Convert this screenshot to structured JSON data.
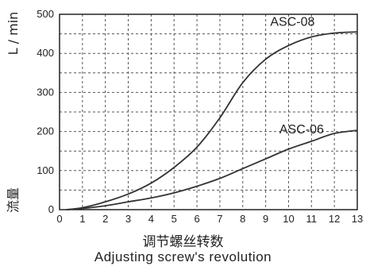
{
  "chart_data": {
    "type": "line",
    "xlabel": "调节螺丝转数",
    "xlabel_en": "Adjusting screw's revolution",
    "ylabel_unit": "L / min",
    "ylabel_cn": "流量",
    "xlim": [
      0,
      13
    ],
    "ylim": [
      0,
      500
    ],
    "x_ticks": [
      0,
      1,
      2,
      3,
      4,
      5,
      6,
      7,
      8,
      9,
      10,
      11,
      12,
      13
    ],
    "y_ticks": [
      0,
      100,
      200,
      300,
      400,
      500
    ],
    "grid": true,
    "series": [
      {
        "name": "ASC-08",
        "x": [
          0.3,
          1,
          2,
          3,
          4,
          5,
          6,
          7,
          8,
          9,
          10,
          11,
          12,
          13
        ],
        "values": [
          0,
          5,
          20,
          40,
          68,
          108,
          160,
          235,
          325,
          385,
          420,
          442,
          452,
          455
        ]
      },
      {
        "name": "ASC-06",
        "x": [
          0.3,
          1,
          2,
          3,
          4,
          5,
          6,
          7,
          8,
          9,
          10,
          11,
          12,
          13
        ],
        "values": [
          0,
          3,
          10,
          20,
          30,
          43,
          60,
          80,
          105,
          130,
          155,
          175,
          195,
          203
        ]
      }
    ]
  }
}
